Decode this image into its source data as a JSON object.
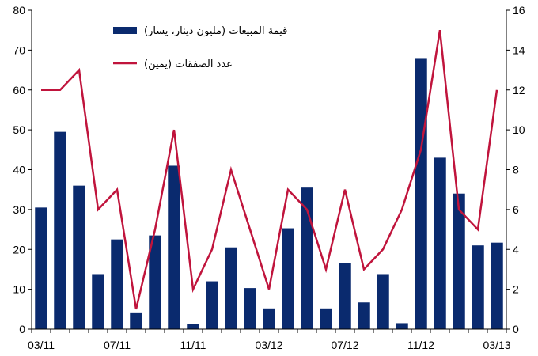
{
  "chart_data": {
    "type": "bar+line",
    "categories": [
      "03/11",
      "04/11",
      "05/11",
      "06/11",
      "07/11",
      "08/11",
      "09/11",
      "10/11",
      "11/11",
      "12/11",
      "01/12",
      "02/12",
      "03/12",
      "04/12",
      "05/12",
      "06/12",
      "07/12",
      "08/12",
      "09/12",
      "10/12",
      "11/12",
      "12/12",
      "01/13",
      "02/13",
      "03/13"
    ],
    "x_tick_labels": [
      "03/11",
      "07/11",
      "11/11",
      "03/12",
      "07/12",
      "11/12",
      "03/13"
    ],
    "series": [
      {
        "name": "قيمة المبيعات (مليون دينار، يسار)",
        "type": "bar",
        "axis": "left",
        "color": "#0a2a6e",
        "values": [
          30.5,
          49.5,
          36,
          13.8,
          22.5,
          4,
          23.5,
          41,
          1.3,
          12,
          20.5,
          10.3,
          5.2,
          25.3,
          35.5,
          5.2,
          16.5,
          6.7,
          13.8,
          1.5,
          68,
          43,
          34,
          21,
          21.7
        ]
      },
      {
        "name": "عدد الصفقات (يمين)",
        "type": "line",
        "axis": "right",
        "color": "#c0143c",
        "values": [
          12,
          12,
          13,
          6,
          7,
          1,
          5,
          10,
          2,
          4,
          8,
          5,
          2,
          7,
          6,
          3,
          7,
          3,
          4,
          6,
          9,
          15,
          6,
          5,
          12
        ]
      }
    ],
    "y_left": {
      "min": 0,
      "max": 80,
      "ticks": [
        0,
        10,
        20,
        30,
        40,
        50,
        60,
        70,
        80
      ]
    },
    "y_right": {
      "min": 0,
      "max": 16,
      "ticks": [
        0,
        2,
        4,
        6,
        8,
        10,
        12,
        14,
        16
      ]
    },
    "legend_position": "top-left",
    "grid": false
  }
}
